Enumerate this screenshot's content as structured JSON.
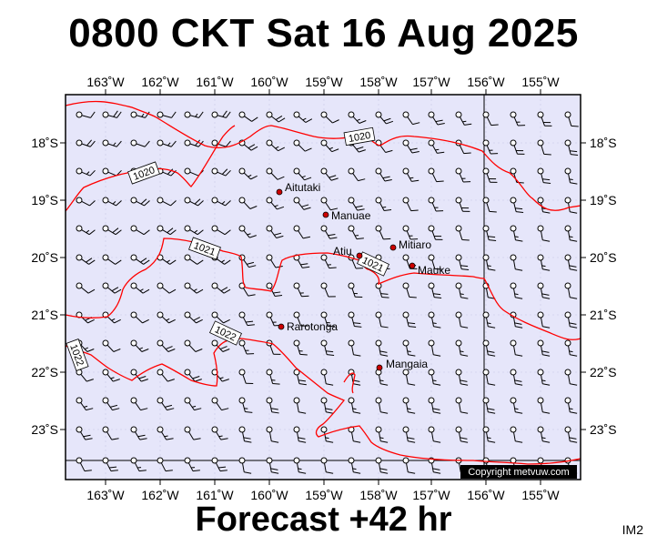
{
  "title": "0800 CKT Sat 16 Aug 2025",
  "footer": "Forecast +42 hr",
  "tag": "IM2",
  "copyright": "Copyright metvuw.com",
  "colors": {
    "background": "#e6e6fa",
    "isobar": "#ff0000",
    "barb": "#000000",
    "place_marker": "#cc0000"
  },
  "longitude_labels": [
    "163˚W",
    "162˚W",
    "161˚W",
    "160˚W",
    "159˚W",
    "158˚W",
    "157˚W",
    "156˚W",
    "155˚W"
  ],
  "latitude_labels": [
    "18˚S",
    "19˚S",
    "20˚S",
    "21˚S",
    "22˚S",
    "23˚S"
  ],
  "places": [
    {
      "name": "Aitutaki",
      "icon": "place-dot-icon"
    },
    {
      "name": "Manuae",
      "icon": "place-dot-icon"
    },
    {
      "name": "Mitiaro",
      "icon": "place-dot-icon"
    },
    {
      "name": "Atiu",
      "icon": "place-dot-icon"
    },
    {
      "name": "Mauke",
      "icon": "place-dot-icon"
    },
    {
      "name": "Rarotonga",
      "icon": "place-dot-icon"
    },
    {
      "name": "Mangaia",
      "icon": "place-dot-icon"
    }
  ],
  "isobar_labels": [
    "1020",
    "1020",
    "1021",
    "1021",
    "1022",
    "1022"
  ],
  "wind_barb_icon": "wind-barb-icon"
}
